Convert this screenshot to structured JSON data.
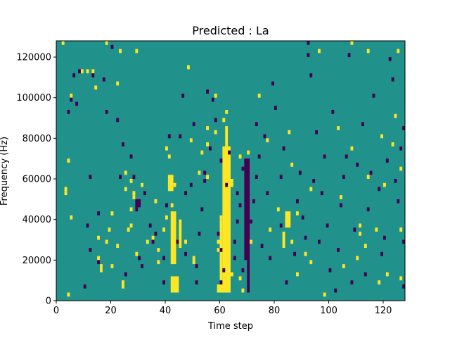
{
  "chart_data": {
    "type": "heatmap",
    "title": "Predicted : La",
    "xlabel": "Time step",
    "ylabel": "Frequency (Hz)",
    "xlim": [
      0,
      128
    ],
    "ylim": [
      0,
      128000
    ],
    "xticks": [
      0,
      20,
      40,
      60,
      80,
      100,
      120
    ],
    "yticks": [
      0,
      20000,
      40000,
      60000,
      80000,
      100000,
      120000
    ],
    "grid": false,
    "legend": "none",
    "colors": {
      "background": "#21918c",
      "high": "#fde725",
      "low": "#440154"
    },
    "cell_size": {
      "time_steps": 1,
      "frequency_hz": 2000
    },
    "bands": [
      {
        "level": "high",
        "t0": 61,
        "t1": 64,
        "f0": 4000,
        "f1": 76000
      },
      {
        "level": "high",
        "t0": 62,
        "t1": 63,
        "f0": 76000,
        "f1": 86000
      },
      {
        "level": "high",
        "t0": 60,
        "t1": 61,
        "f0": 4000,
        "f1": 40000
      },
      {
        "level": "high",
        "t0": 59,
        "t1": 64,
        "f0": 4000,
        "f1": 8000
      },
      {
        "level": "high",
        "t0": 42,
        "t1": 44,
        "f0": 18000,
        "f1": 44000
      },
      {
        "level": "high",
        "t0": 45,
        "t1": 46,
        "f0": 26000,
        "f1": 40000
      },
      {
        "level": "high",
        "t0": 42,
        "t1": 45,
        "f0": 4000,
        "f1": 12000
      },
      {
        "level": "high",
        "t0": 41,
        "t1": 43,
        "f0": 54000,
        "f1": 62000
      },
      {
        "level": "low",
        "t0": 69,
        "t1": 71,
        "f0": 20000,
        "f1": 70000
      },
      {
        "level": "low",
        "t0": 70,
        "t1": 71,
        "f0": 4000,
        "f1": 20000
      },
      {
        "level": "high",
        "t0": 84,
        "t1": 86,
        "f0": 36000,
        "f1": 44000
      },
      {
        "level": "high",
        "t0": 83,
        "t1": 84,
        "f0": 26000,
        "f1": 34000
      },
      {
        "level": "low",
        "t0": 29,
        "t1": 31,
        "f0": 46000,
        "f1": 50000
      }
    ],
    "high_cells": [
      [
        2,
        126000
      ],
      [
        3,
        54000
      ],
      [
        3,
        52000
      ],
      [
        4,
        68000
      ],
      [
        4,
        2000
      ],
      [
        5,
        40000
      ],
      [
        5,
        100000
      ],
      [
        9,
        112000
      ],
      [
        11,
        112000
      ],
      [
        13,
        112000
      ],
      [
        14,
        104000
      ],
      [
        15,
        30000
      ],
      [
        15,
        20000
      ],
      [
        16,
        14000
      ],
      [
        18,
        126000
      ],
      [
        16,
        16000
      ],
      [
        18,
        28000
      ],
      [
        19,
        34000
      ],
      [
        20,
        42000
      ],
      [
        20,
        16000
      ],
      [
        22,
        26000
      ],
      [
        22,
        106000
      ],
      [
        23,
        122000
      ],
      [
        24,
        6000
      ],
      [
        24,
        8000
      ],
      [
        25,
        62000
      ],
      [
        25,
        54000
      ],
      [
        26,
        34000
      ],
      [
        27,
        36000
      ],
      [
        27,
        44000
      ],
      [
        27,
        58000
      ],
      [
        28,
        50000
      ],
      [
        28,
        52000
      ],
      [
        29,
        122000
      ],
      [
        29,
        22000
      ],
      [
        31,
        56000
      ],
      [
        33,
        28000
      ],
      [
        35,
        30000
      ],
      [
        36,
        48000
      ],
      [
        37,
        24000
      ],
      [
        37,
        18000
      ],
      [
        39,
        34000
      ],
      [
        40,
        40000
      ],
      [
        40,
        74000
      ],
      [
        41,
        70000
      ],
      [
        42,
        46000
      ],
      [
        43,
        56000
      ],
      [
        43,
        34000
      ],
      [
        47,
        28000
      ],
      [
        48,
        114000
      ],
      [
        49,
        78000
      ],
      [
        50,
        20000
      ],
      [
        50,
        18000
      ],
      [
        52,
        62000
      ],
      [
        53,
        72000
      ],
      [
        55,
        60000
      ],
      [
        55,
        76000
      ],
      [
        55,
        84000
      ],
      [
        58,
        100000
      ],
      [
        58,
        82000
      ],
      [
        59,
        28000
      ],
      [
        59,
        24000
      ],
      [
        60,
        40000
      ],
      [
        61,
        88000
      ],
      [
        62,
        92000
      ],
      [
        64,
        58000
      ],
      [
        64,
        56000
      ],
      [
        64,
        12000
      ],
      [
        67,
        10000
      ],
      [
        67,
        70000
      ],
      [
        68,
        4000
      ],
      [
        70,
        72000
      ],
      [
        71,
        28000
      ],
      [
        74,
        100000
      ],
      [
        77,
        78000
      ],
      [
        78,
        34000
      ],
      [
        81,
        44000
      ],
      [
        85,
        82000
      ],
      [
        86,
        28000
      ],
      [
        86,
        66000
      ],
      [
        88,
        42000
      ],
      [
        88,
        12000
      ],
      [
        91,
        22000
      ],
      [
        93,
        54000
      ],
      [
        93,
        18000
      ],
      [
        96,
        122000
      ],
      [
        98,
        2000
      ],
      [
        103,
        84000
      ],
      [
        104,
        50000
      ],
      [
        105,
        16000
      ],
      [
        108,
        74000
      ],
      [
        108,
        126000
      ],
      [
        110,
        20000
      ],
      [
        111,
        32000
      ],
      [
        111,
        36000
      ],
      [
        113,
        26000
      ],
      [
        114,
        60000
      ],
      [
        114,
        122000
      ],
      [
        117,
        34000
      ],
      [
        118,
        8000
      ],
      [
        119,
        80000
      ],
      [
        120,
        56000
      ],
      [
        121,
        12000
      ],
      [
        123,
        76000
      ],
      [
        124,
        90000
      ],
      [
        125,
        122000
      ],
      [
        126,
        10000
      ],
      [
        126,
        34000
      ],
      [
        126,
        64000
      ]
    ],
    "low_cells": [
      [
        4,
        92000
      ],
      [
        5,
        98000
      ],
      [
        6,
        110000
      ],
      [
        7,
        96000
      ],
      [
        8,
        112000
      ],
      [
        10,
        6000
      ],
      [
        11,
        36000
      ],
      [
        12,
        60000
      ],
      [
        12,
        24000
      ],
      [
        13,
        110000
      ],
      [
        15,
        18000
      ],
      [
        15,
        42000
      ],
      [
        17,
        108000
      ],
      [
        18,
        92000
      ],
      [
        20,
        124000
      ],
      [
        22,
        88000
      ],
      [
        23,
        60000
      ],
      [
        24,
        76000
      ],
      [
        25,
        12000
      ],
      [
        27,
        70000
      ],
      [
        28,
        60000
      ],
      [
        29,
        44000
      ],
      [
        30,
        20000
      ],
      [
        31,
        16000
      ],
      [
        32,
        52000
      ],
      [
        34,
        36000
      ],
      [
        35,
        28000
      ],
      [
        36,
        32000
      ],
      [
        39,
        8000
      ],
      [
        39,
        20000
      ],
      [
        40,
        46000
      ],
      [
        41,
        80000
      ],
      [
        44,
        28000
      ],
      [
        45,
        80000
      ],
      [
        46,
        100000
      ],
      [
        47,
        22000
      ],
      [
        47,
        52000
      ],
      [
        49,
        56000
      ],
      [
        50,
        86000
      ],
      [
        51,
        8000
      ],
      [
        51,
        16000
      ],
      [
        52,
        32000
      ],
      [
        53,
        44000
      ],
      [
        54,
        62000
      ],
      [
        54,
        58000
      ],
      [
        55,
        102000
      ],
      [
        56,
        74000
      ],
      [
        57,
        98000
      ],
      [
        58,
        88000
      ],
      [
        59,
        32000
      ],
      [
        60,
        24000
      ],
      [
        60,
        8000
      ],
      [
        60,
        68000
      ],
      [
        61,
        14000
      ],
      [
        62,
        56000
      ],
      [
        63,
        72000
      ],
      [
        65,
        28000
      ],
      [
        65,
        20000
      ],
      [
        66,
        38000
      ],
      [
        66,
        52000
      ],
      [
        67,
        46000
      ],
      [
        68,
        14000
      ],
      [
        68,
        64000
      ],
      [
        71,
        38000
      ],
      [
        72,
        48000
      ],
      [
        73,
        86000
      ],
      [
        73,
        60000
      ],
      [
        74,
        70000
      ],
      [
        75,
        26000
      ],
      [
        76,
        80000
      ],
      [
        77,
        52000
      ],
      [
        78,
        20000
      ],
      [
        79,
        106000
      ],
      [
        80,
        94000
      ],
      [
        82,
        36000
      ],
      [
        82,
        60000
      ],
      [
        83,
        74000
      ],
      [
        84,
        8000
      ],
      [
        87,
        22000
      ],
      [
        88,
        48000
      ],
      [
        89,
        62000
      ],
      [
        90,
        40000
      ],
      [
        91,
        30000
      ],
      [
        92,
        126000
      ],
      [
        92,
        120000
      ],
      [
        93,
        110000
      ],
      [
        94,
        58000
      ],
      [
        95,
        82000
      ],
      [
        96,
        28000
      ],
      [
        97,
        52000
      ],
      [
        98,
        70000
      ],
      [
        99,
        36000
      ],
      [
        100,
        14000
      ],
      [
        101,
        92000
      ],
      [
        102,
        4000
      ],
      [
        103,
        24000
      ],
      [
        104,
        46000
      ],
      [
        105,
        60000
      ],
      [
        106,
        70000
      ],
      [
        107,
        120000
      ],
      [
        108,
        8000
      ],
      [
        109,
        34000
      ],
      [
        110,
        66000
      ],
      [
        112,
        86000
      ],
      [
        113,
        12000
      ],
      [
        114,
        44000
      ],
      [
        115,
        62000
      ],
      [
        116,
        100000
      ],
      [
        118,
        54000
      ],
      [
        119,
        22000
      ],
      [
        120,
        30000
      ],
      [
        121,
        68000
      ],
      [
        122,
        118000
      ],
      [
        123,
        108000
      ],
      [
        124,
        58000
      ],
      [
        125,
        48000
      ],
      [
        126,
        74000
      ],
      [
        127,
        84000
      ],
      [
        127,
        28000
      ],
      [
        127,
        6000
      ]
    ]
  }
}
